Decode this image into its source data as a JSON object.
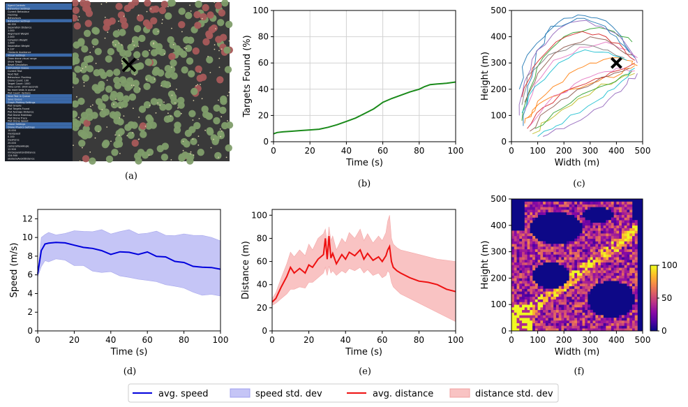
{
  "figure": {
    "captions": [
      "(a)",
      "(b)",
      "(c)",
      "(d)",
      "(e)",
      "(f)"
    ]
  },
  "colors": {
    "speed": "#0000dd",
    "speed_band": "#c5c5f6",
    "distance": "#ee1111",
    "distance_band": "#f9c3c3",
    "targets": "#1a8a1a",
    "grid": "#d2d2d2",
    "sim_background": "#3a3a3a",
    "target_found": "#7f9d6a",
    "target_missed": "#a85a5a",
    "ui_panel": "#1a1e26",
    "ui_header": "#3b69a8"
  },
  "sim_panel": {
    "panel_lines": [
      "Agent Controls",
      "Behaviour Settings",
      "Current Behaviour",
      "Flocking",
      "Behaviours",
      "Behaviour Settings",
      "46.335",
      "Separation Distance",
      "1.000",
      "Alignment Weight",
      "2.000",
      "Cohesion Weight",
      "1.000",
      "Separation Weight",
      "0.137",
      "Obstacle Avoidance",
      "Visual Settings",
      "Draw drone visual range",
      "Show Target",
      "Reset Simulation",
      "Simulation Queue",
      "Current Test",
      "Next Test",
      "Behaviour: Flocking",
      "Drone Count: 100",
      "Target Count: 1000",
      "Time Limit: 1000 seconds",
      "No more tests in queue",
      "Plot Count: Options",
      "Next Test in Queue",
      "Save Queue",
      "Graph Plotting Settings",
      "Plot Graphs",
      "Plot Targets Found",
      "Plot Average Distance",
      "Plot Drone Heatmap",
      "Plot Drone Trace",
      "Plot Drone Speed",
      "Drone Settings",
      "Drone Physics Settings",
      "10.000",
      "maxSpeed",
      "0.100",
      "maxForce",
      "25.000",
      "cameraViewAngle",
      "12.500",
      "minSeparationDistance",
      "124.900",
      "obstacleAvoidDistance"
    ],
    "marker": "x-marker"
  },
  "chart_data": [
    {
      "id": "b",
      "type": "line",
      "xlabel": "Time (s)",
      "ylabel": "Targets Found (%)",
      "xlim": [
        0,
        100
      ],
      "ylim": [
        0,
        100
      ],
      "xticks": [
        0,
        20,
        40,
        60,
        80,
        100
      ],
      "yticks": [
        0,
        20,
        40,
        60,
        80,
        100
      ],
      "grid": true,
      "series": [
        {
          "color": "#1a8a1a",
          "x": [
            0,
            2,
            5,
            10,
            15,
            20,
            25,
            30,
            35,
            40,
            45,
            50,
            55,
            58,
            60,
            65,
            70,
            75,
            80,
            83,
            86,
            90,
            95,
            100
          ],
          "y": [
            6,
            7,
            7.5,
            8,
            8.5,
            9,
            9.5,
            11,
            13,
            15.5,
            18,
            21.5,
            25,
            28,
            30,
            33,
            35.5,
            38,
            40,
            42,
            43.5,
            44,
            44.5,
            45.5
          ]
        }
      ]
    },
    {
      "id": "c",
      "type": "line",
      "xlabel": "Width (m)",
      "ylabel": "Height (m)",
      "xlim": [
        0,
        500
      ],
      "ylim": [
        0,
        500
      ],
      "xticks": [
        0,
        100,
        200,
        300,
        400,
        500
      ],
      "yticks": [
        0,
        100,
        200,
        300,
        400,
        500
      ],
      "grid": false,
      "marker": {
        "x": 400,
        "y": 300
      },
      "series": [
        {
          "color": "#1f77b4",
          "x": [
            45,
            60,
            90,
            130,
            200,
            280,
            360,
            420,
            470
          ],
          "y": [
            60,
            160,
            300,
            410,
            470,
            480,
            460,
            400,
            320
          ]
        },
        {
          "color": "#ff7f0e",
          "x": [
            50,
            80,
            150,
            230,
            330,
            420,
            470
          ],
          "y": [
            70,
            120,
            170,
            200,
            230,
            260,
            290
          ]
        },
        {
          "color": "#2ca02c",
          "x": [
            40,
            70,
            120,
            200,
            300,
            390,
            460
          ],
          "y": [
            80,
            200,
            320,
            400,
            430,
            420,
            380
          ]
        },
        {
          "color": "#d62728",
          "x": [
            60,
            120,
            220,
            320,
            400,
            470
          ],
          "y": [
            50,
            130,
            200,
            240,
            270,
            300
          ]
        },
        {
          "color": "#9467bd",
          "x": [
            30,
            50,
            100,
            180,
            260,
            340,
            430,
            480
          ],
          "y": [
            100,
            230,
            350,
            430,
            460,
            440,
            380,
            300
          ]
        },
        {
          "color": "#8c564b",
          "x": [
            70,
            110,
            190,
            290,
            370,
            450
          ],
          "y": [
            40,
            100,
            160,
            210,
            250,
            280
          ]
        },
        {
          "color": "#e377c2",
          "x": [
            50,
            90,
            160,
            260,
            360,
            440,
            480
          ],
          "y": [
            120,
            220,
            310,
            360,
            380,
            350,
            320
          ]
        },
        {
          "color": "#7f7f7f",
          "x": [
            40,
            60,
            140,
            240,
            350,
            430
          ],
          "y": [
            140,
            250,
            330,
            370,
            350,
            320
          ]
        },
        {
          "color": "#bcbd22",
          "x": [
            80,
            140,
            230,
            320,
            410,
            470
          ],
          "y": [
            30,
            80,
            140,
            200,
            240,
            260
          ]
        },
        {
          "color": "#17becf",
          "x": [
            100,
            170,
            260,
            350,
            420,
            470
          ],
          "y": [
            20,
            60,
            110,
            170,
            230,
            280
          ]
        },
        {
          "color": "#1f77b4",
          "x": [
            30,
            60,
            150,
            250,
            330,
            400,
            450
          ],
          "y": [
            200,
            330,
            440,
            470,
            450,
            400,
            340
          ]
        },
        {
          "color": "#ff7f0e",
          "x": [
            60,
            130,
            220,
            300,
            380,
            440,
            480
          ],
          "y": [
            90,
            180,
            260,
            300,
            320,
            310,
            290
          ]
        },
        {
          "color": "#2ca02c",
          "x": [
            90,
            160,
            250,
            340,
            420,
            460
          ],
          "y": [
            50,
            110,
            170,
            210,
            250,
            270
          ]
        },
        {
          "color": "#d62728",
          "x": [
            40,
            80,
            170,
            270,
            360,
            430,
            470
          ],
          "y": [
            170,
            280,
            380,
            420,
            400,
            350,
            310
          ]
        },
        {
          "color": "#9467bd",
          "x": [
            120,
            200,
            290,
            370,
            440,
            480
          ],
          "y": [
            20,
            50,
            100,
            160,
            220,
            260
          ]
        },
        {
          "color": "#8c564b",
          "x": [
            50,
            100,
            200,
            300,
            390,
            460
          ],
          "y": [
            150,
            260,
            360,
            400,
            370,
            330
          ]
        },
        {
          "color": "#e377c2",
          "x": [
            70,
            130,
            240,
            330,
            400,
            470
          ],
          "y": [
            60,
            140,
            220,
            260,
            280,
            270
          ]
        },
        {
          "color": "#17becf",
          "x": [
            40,
            90,
            180,
            280,
            370,
            440
          ],
          "y": [
            110,
            210,
            300,
            350,
            340,
            310
          ]
        }
      ]
    },
    {
      "id": "d",
      "type": "line",
      "xlabel": "Time (s)",
      "ylabel": "Speed (m/s)",
      "xlim": [
        0,
        100
      ],
      "ylim": [
        0,
        13
      ],
      "xticks": [
        0,
        20,
        40,
        60,
        80,
        100
      ],
      "yticks": [
        0,
        2,
        4,
        6,
        8,
        10,
        12
      ],
      "grid": false,
      "series": [
        {
          "name": "avg. speed",
          "color": "#0000dd",
          "band_name": "speed std. dev",
          "band_color": "#c5c5f6",
          "x": [
            0,
            2,
            4,
            6,
            10,
            15,
            20,
            25,
            30,
            35,
            40,
            45,
            50,
            55,
            60,
            65,
            70,
            75,
            80,
            85,
            90,
            95,
            100
          ],
          "y": [
            6.1,
            8.6,
            9.3,
            9.4,
            9.45,
            9.4,
            9.2,
            9.0,
            8.8,
            8.6,
            8.3,
            8.4,
            8.5,
            8.3,
            8.4,
            8.0,
            7.9,
            7.5,
            7.2,
            7.0,
            6.9,
            6.9,
            6.6
          ],
          "lower": [
            5.9,
            7.0,
            7.6,
            7.6,
            7.6,
            7.4,
            7.2,
            6.9,
            6.6,
            6.4,
            6.2,
            6.0,
            5.8,
            5.6,
            5.4,
            5.2,
            5.0,
            4.8,
            4.5,
            4.2,
            4.0,
            3.8,
            3.6
          ],
          "upper": [
            6.3,
            10.1,
            10.5,
            10.5,
            10.5,
            10.5,
            10.5,
            10.5,
            10.5,
            10.6,
            10.6,
            10.7,
            10.7,
            10.6,
            10.6,
            10.5,
            10.4,
            10.3,
            10.2,
            10.1,
            10.0,
            9.9,
            9.8
          ]
        }
      ]
    },
    {
      "id": "e",
      "type": "line",
      "xlabel": "Time (s)",
      "ylabel": "Distance (m)",
      "xlim": [
        0,
        100
      ],
      "ylim": [
        0,
        105
      ],
      "xticks": [
        0,
        20,
        40,
        60,
        80,
        100
      ],
      "yticks": [
        0,
        20,
        40,
        60,
        80,
        100
      ],
      "grid": false,
      "series": [
        {
          "name": "avg. distance",
          "color": "#ee1111",
          "band_name": "distance std. dev",
          "band_color": "#f9c3c3",
          "x": [
            0,
            2,
            5,
            8,
            10,
            12,
            15,
            18,
            20,
            22,
            25,
            28,
            29,
            30,
            31,
            32,
            33,
            35,
            38,
            40,
            42,
            45,
            48,
            50,
            52,
            55,
            58,
            60,
            62,
            63,
            64,
            65,
            66,
            68,
            70,
            75,
            80,
            85,
            90,
            95,
            100
          ],
          "y": [
            25,
            28,
            38,
            47,
            55,
            50,
            54,
            50,
            57,
            55,
            62,
            66,
            80,
            62,
            82,
            63,
            67,
            58,
            66,
            62,
            68,
            65,
            70,
            62,
            67,
            61,
            64,
            60,
            65,
            70,
            73,
            60,
            55,
            52,
            50,
            46,
            43,
            42,
            40,
            36,
            34
          ]
        }
      ],
      "lower": [
        22,
        24,
        28,
        32,
        36,
        36,
        38,
        37,
        42,
        42,
        46,
        50,
        55,
        48,
        56,
        50,
        52,
        48,
        52,
        50,
        54,
        52,
        55,
        50,
        53,
        48,
        50,
        46,
        48,
        52,
        50,
        42,
        38,
        35,
        32,
        28,
        24,
        20,
        16,
        12,
        8
      ],
      "upper": [
        28,
        33,
        46,
        58,
        68,
        64,
        70,
        65,
        75,
        70,
        80,
        84,
        88,
        76,
        90,
        78,
        82,
        70,
        80,
        76,
        85,
        80,
        88,
        78,
        84,
        76,
        82,
        78,
        85,
        95,
        100,
        80,
        75,
        72,
        70,
        68,
        66,
        64,
        62,
        61,
        60
      ]
    },
    {
      "id": "f",
      "type": "heatmap",
      "xlabel": "Width (m)",
      "ylabel": "Height (m)",
      "xlim": [
        0,
        500
      ],
      "ylim": [
        0,
        500
      ],
      "xticks": [
        0,
        100,
        200,
        300,
        400,
        500
      ],
      "yticks": [
        0,
        100,
        200,
        300,
        400,
        500
      ],
      "colorbar": {
        "min": 0,
        "max": 100,
        "ticks": [
          0,
          50,
          100
        ],
        "colormap": "plasma"
      },
      "grid_size": 50
    }
  ],
  "legend": {
    "items": [
      {
        "label": "avg. speed",
        "kind": "line",
        "color": "#0000dd"
      },
      {
        "label": "speed std. dev",
        "kind": "patch",
        "color": "#c5c5f6"
      },
      {
        "label": "avg. distance",
        "kind": "line",
        "color": "#ee1111"
      },
      {
        "label": "distance std. dev",
        "kind": "patch",
        "color": "#f9c3c3"
      }
    ]
  }
}
